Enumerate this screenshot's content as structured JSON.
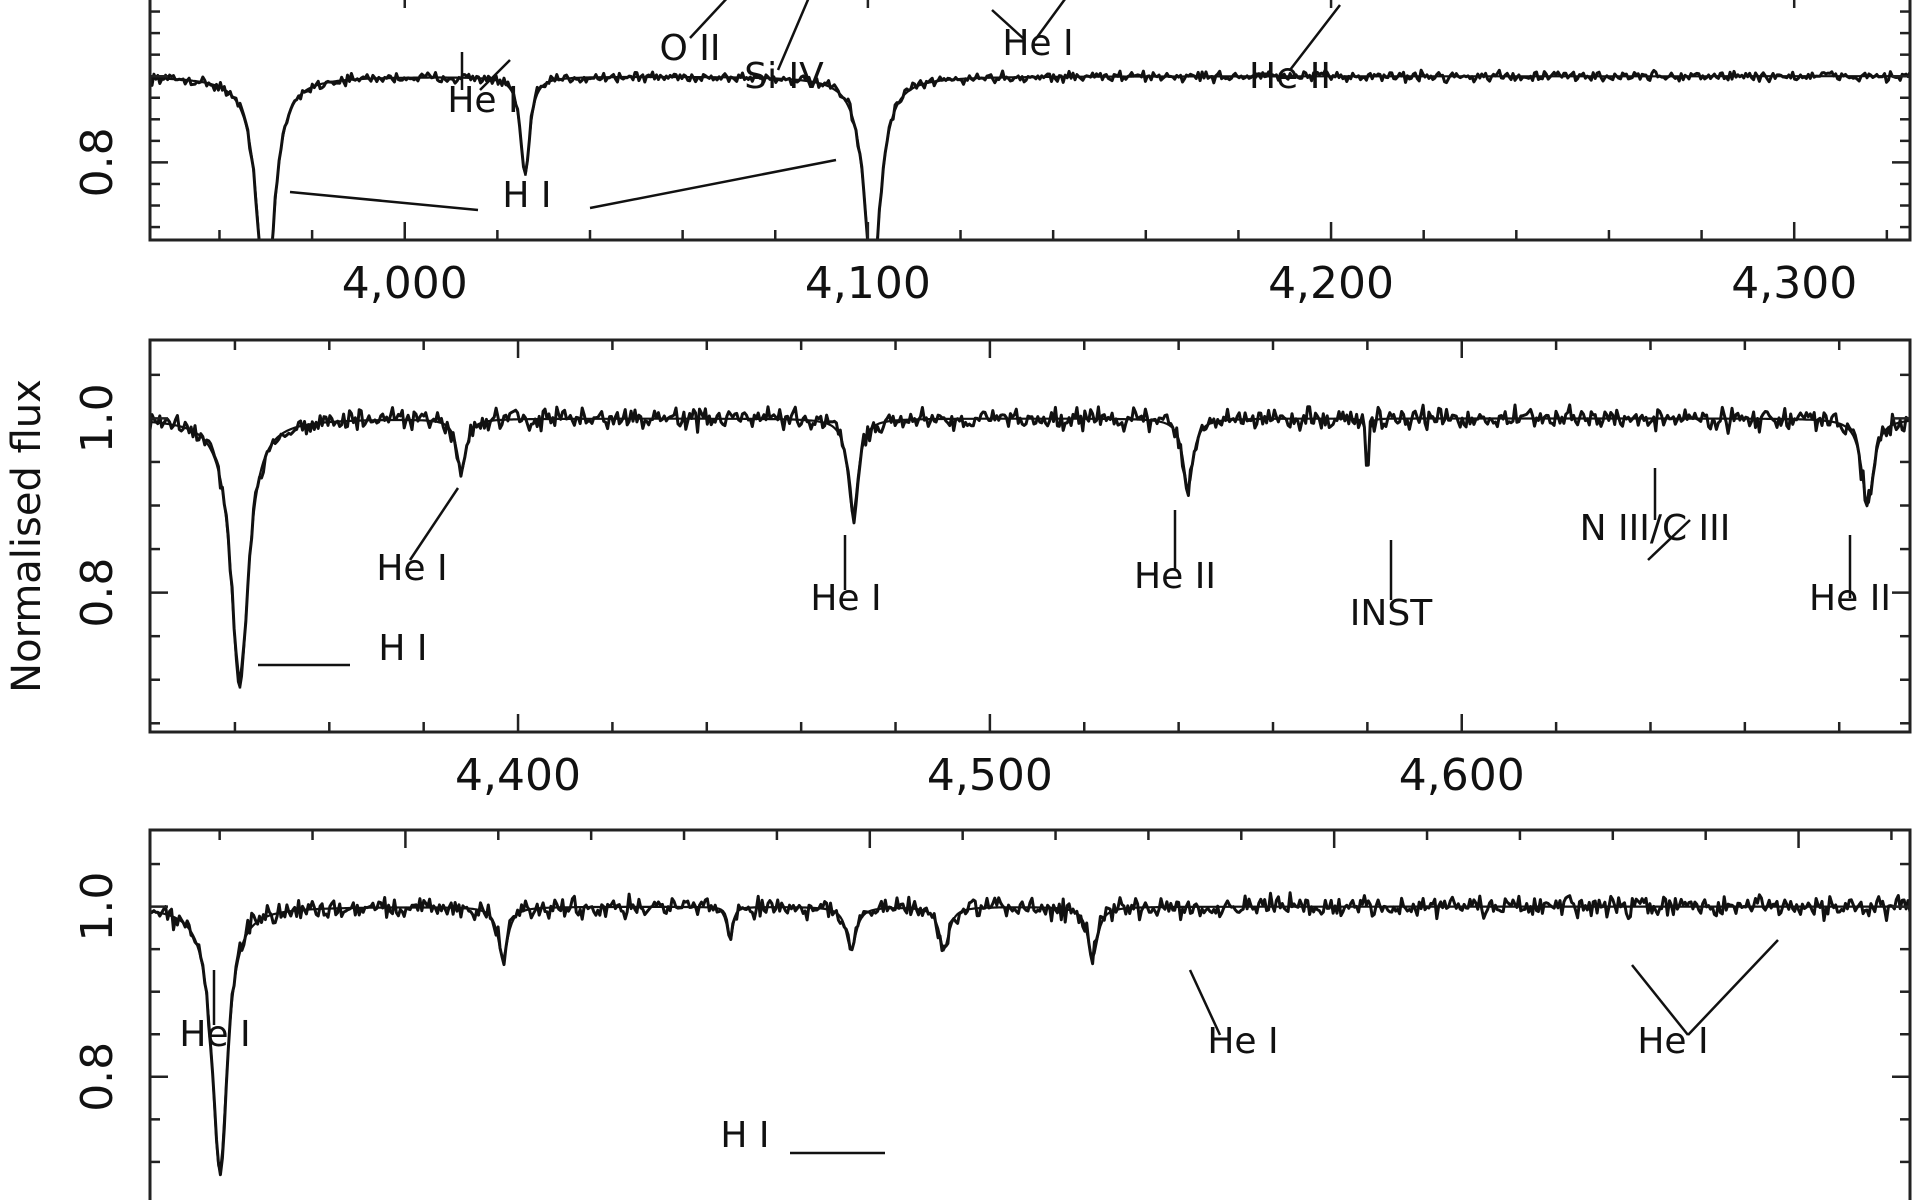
{
  "chart_data": [
    {
      "type": "line",
      "panel": "top",
      "xlim": [
        3945,
        4325
      ],
      "ylim": [
        0.62,
        1.2
      ],
      "x_ticks": [
        4000,
        4100,
        4200,
        4300
      ],
      "x_tick_labels": [
        "4,000",
        "4,100",
        "4,200",
        "4,300"
      ],
      "y_ticks": [
        0.8
      ],
      "y_tick_labels": [
        "0.8"
      ],
      "lines": [
        {
          "center": 3970,
          "depth": 0.54,
          "width": 2.2
        },
        {
          "center": 4026,
          "depth": 0.23,
          "width": 1.2
        },
        {
          "center": 4101,
          "depth": 0.46,
          "width": 2.2
        }
      ],
      "annotations": [
        {
          "text": "He I",
          "x": 4017,
          "y": 0.74
        },
        {
          "text": "O II",
          "x": 4054,
          "y": 0.84
        },
        {
          "text": "Si IV",
          "x": 4082,
          "y": 0.78
        },
        {
          "text": "He I",
          "x": 4134,
          "y": 0.84
        },
        {
          "text": "He II",
          "x": 4191,
          "y": 0.77
        },
        {
          "text": "H I",
          "x": 4029,
          "y": 0.65
        }
      ]
    },
    {
      "type": "line",
      "panel": "middle",
      "xlim": [
        4322,
        4695
      ],
      "ylim": [
        0.64,
        1.09
      ],
      "x_ticks": [
        4400,
        4500,
        4600
      ],
      "x_tick_labels": [
        "4,400",
        "4,500",
        "4,600"
      ],
      "y_ticks": [
        1.0,
        0.8
      ],
      "y_tick_labels": [
        "1.0",
        "0.8"
      ],
      "y_axis_label": "Normalised flux",
      "lines": [
        {
          "center": 4341,
          "depth": 0.31,
          "width": 2.2
        },
        {
          "center": 4388,
          "depth": 0.06,
          "width": 1.2
        },
        {
          "center": 4471,
          "depth": 0.11,
          "width": 1.3
        },
        {
          "center": 4542,
          "depth": 0.08,
          "width": 1.3
        },
        {
          "center": 4580,
          "depth": 0.08,
          "width": 0.25
        },
        {
          "center": 4686,
          "depth": 0.1,
          "width": 1.5
        }
      ],
      "annotations": [
        {
          "text": "He I",
          "x": 4376,
          "y": 0.78
        },
        {
          "text": "H I",
          "x": 4377,
          "y": 0.69
        },
        {
          "text": "He I",
          "x": 4472,
          "y": 0.76
        },
        {
          "text": "He II",
          "x": 4543,
          "y": 0.77
        },
        {
          "text": "INST",
          "x": 4583,
          "y": 0.75
        },
        {
          "text": "N III/C III",
          "x": 4647,
          "y": 0.81
        },
        {
          "text": "He II",
          "x": 4693,
          "y": 0.76
        }
      ]
    },
    {
      "type": "line",
      "panel": "bottom",
      "xlim": [
        4845,
        5224
      ],
      "ylim": [
        0.62,
        1.09
      ],
      "x_ticks": [],
      "x_tick_labels": [],
      "y_ticks": [
        1.0,
        0.8
      ],
      "y_tick_labels": [
        "1.0",
        "0.8"
      ],
      "lines": [
        {
          "center": 4860,
          "depth": 0.31,
          "width": 2.0
        },
        {
          "center": 4921,
          "depth": 0.06,
          "width": 1.3
        },
        {
          "center": 5016,
          "depth": 0.05,
          "width": 1.3
        },
        {
          "center": 5048,
          "depth": 0.06,
          "width": 1.3
        },
        {
          "center": 4996,
          "depth": 0.05,
          "width": 1.3
        },
        {
          "center": 4970,
          "depth": 0.04,
          "width": 0.6
        }
      ],
      "annotations": [
        {
          "text": "He I",
          "x": 4859,
          "y": 0.82
        },
        {
          "text": "He I",
          "x": 4990,
          "y": 0.82
        },
        {
          "text": "He I",
          "x": 5033,
          "y": 0.82
        },
        {
          "text": "H I",
          "x": 4958,
          "y": 0.71
        }
      ]
    }
  ]
}
